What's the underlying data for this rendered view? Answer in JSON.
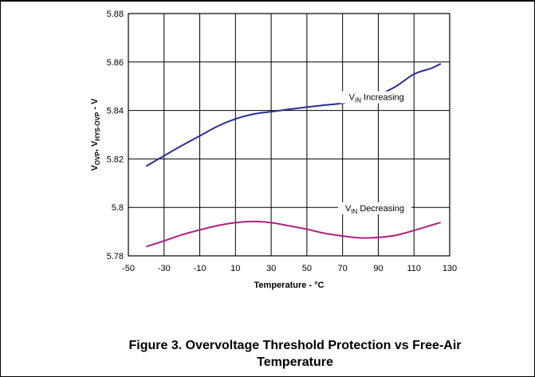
{
  "caption": {
    "line1": "Figure 3. Overvoltage Threshold Protection vs Free-Air",
    "line2": "Temperature"
  },
  "chart_data": {
    "type": "line",
    "title": "",
    "xlabel": "Temperature - °C",
    "ylabel": {
      "main1": "V",
      "sub1": "OVP",
      "sep": ", ",
      "main2": "V",
      "sub2": "HYS-OVP",
      "unit": " - V"
    },
    "xlim": [
      -50,
      130
    ],
    "ylim": [
      5.78,
      5.88
    ],
    "x_ticks": [
      "-50",
      "-30",
      "-10",
      "10",
      "30",
      "50",
      "70",
      "90",
      "110",
      "130"
    ],
    "y_ticks": [
      "5.78",
      "5.8",
      "5.82",
      "5.84",
      "5.86",
      "5.88"
    ],
    "grid": true,
    "series": [
      {
        "name": "VIN Increasing",
        "label_main": "V",
        "label_sub": "IN",
        "label_rest": " Increasing",
        "color": "#2b2f8f",
        "x": [
          -40,
          -30,
          -20,
          -10,
          0,
          10,
          20,
          30,
          40,
          50,
          60,
          70,
          80,
          90,
          100,
          110,
          120,
          125
        ],
        "y": [
          5.817,
          5.8213,
          5.8255,
          5.8295,
          5.8335,
          5.8365,
          5.8385,
          5.8395,
          5.8405,
          5.8414,
          5.8422,
          5.843,
          5.8445,
          5.8465,
          5.85,
          5.855,
          5.8575,
          5.8593
        ]
      },
      {
        "name": "VIN Decreasing",
        "label_main": "V",
        "label_sub": "IN",
        "label_rest": " Decreasing",
        "color": "#b0207f",
        "x": [
          -40,
          -30,
          -20,
          -10,
          0,
          10,
          20,
          30,
          40,
          50,
          60,
          70,
          80,
          90,
          100,
          110,
          120,
          125
        ],
        "y": [
          5.7838,
          5.7862,
          5.7887,
          5.7907,
          5.7925,
          5.7937,
          5.7942,
          5.7937,
          5.7924,
          5.791,
          5.7893,
          5.7882,
          5.7874,
          5.7876,
          5.7885,
          5.7905,
          5.7927,
          5.7938
        ]
      }
    ]
  }
}
